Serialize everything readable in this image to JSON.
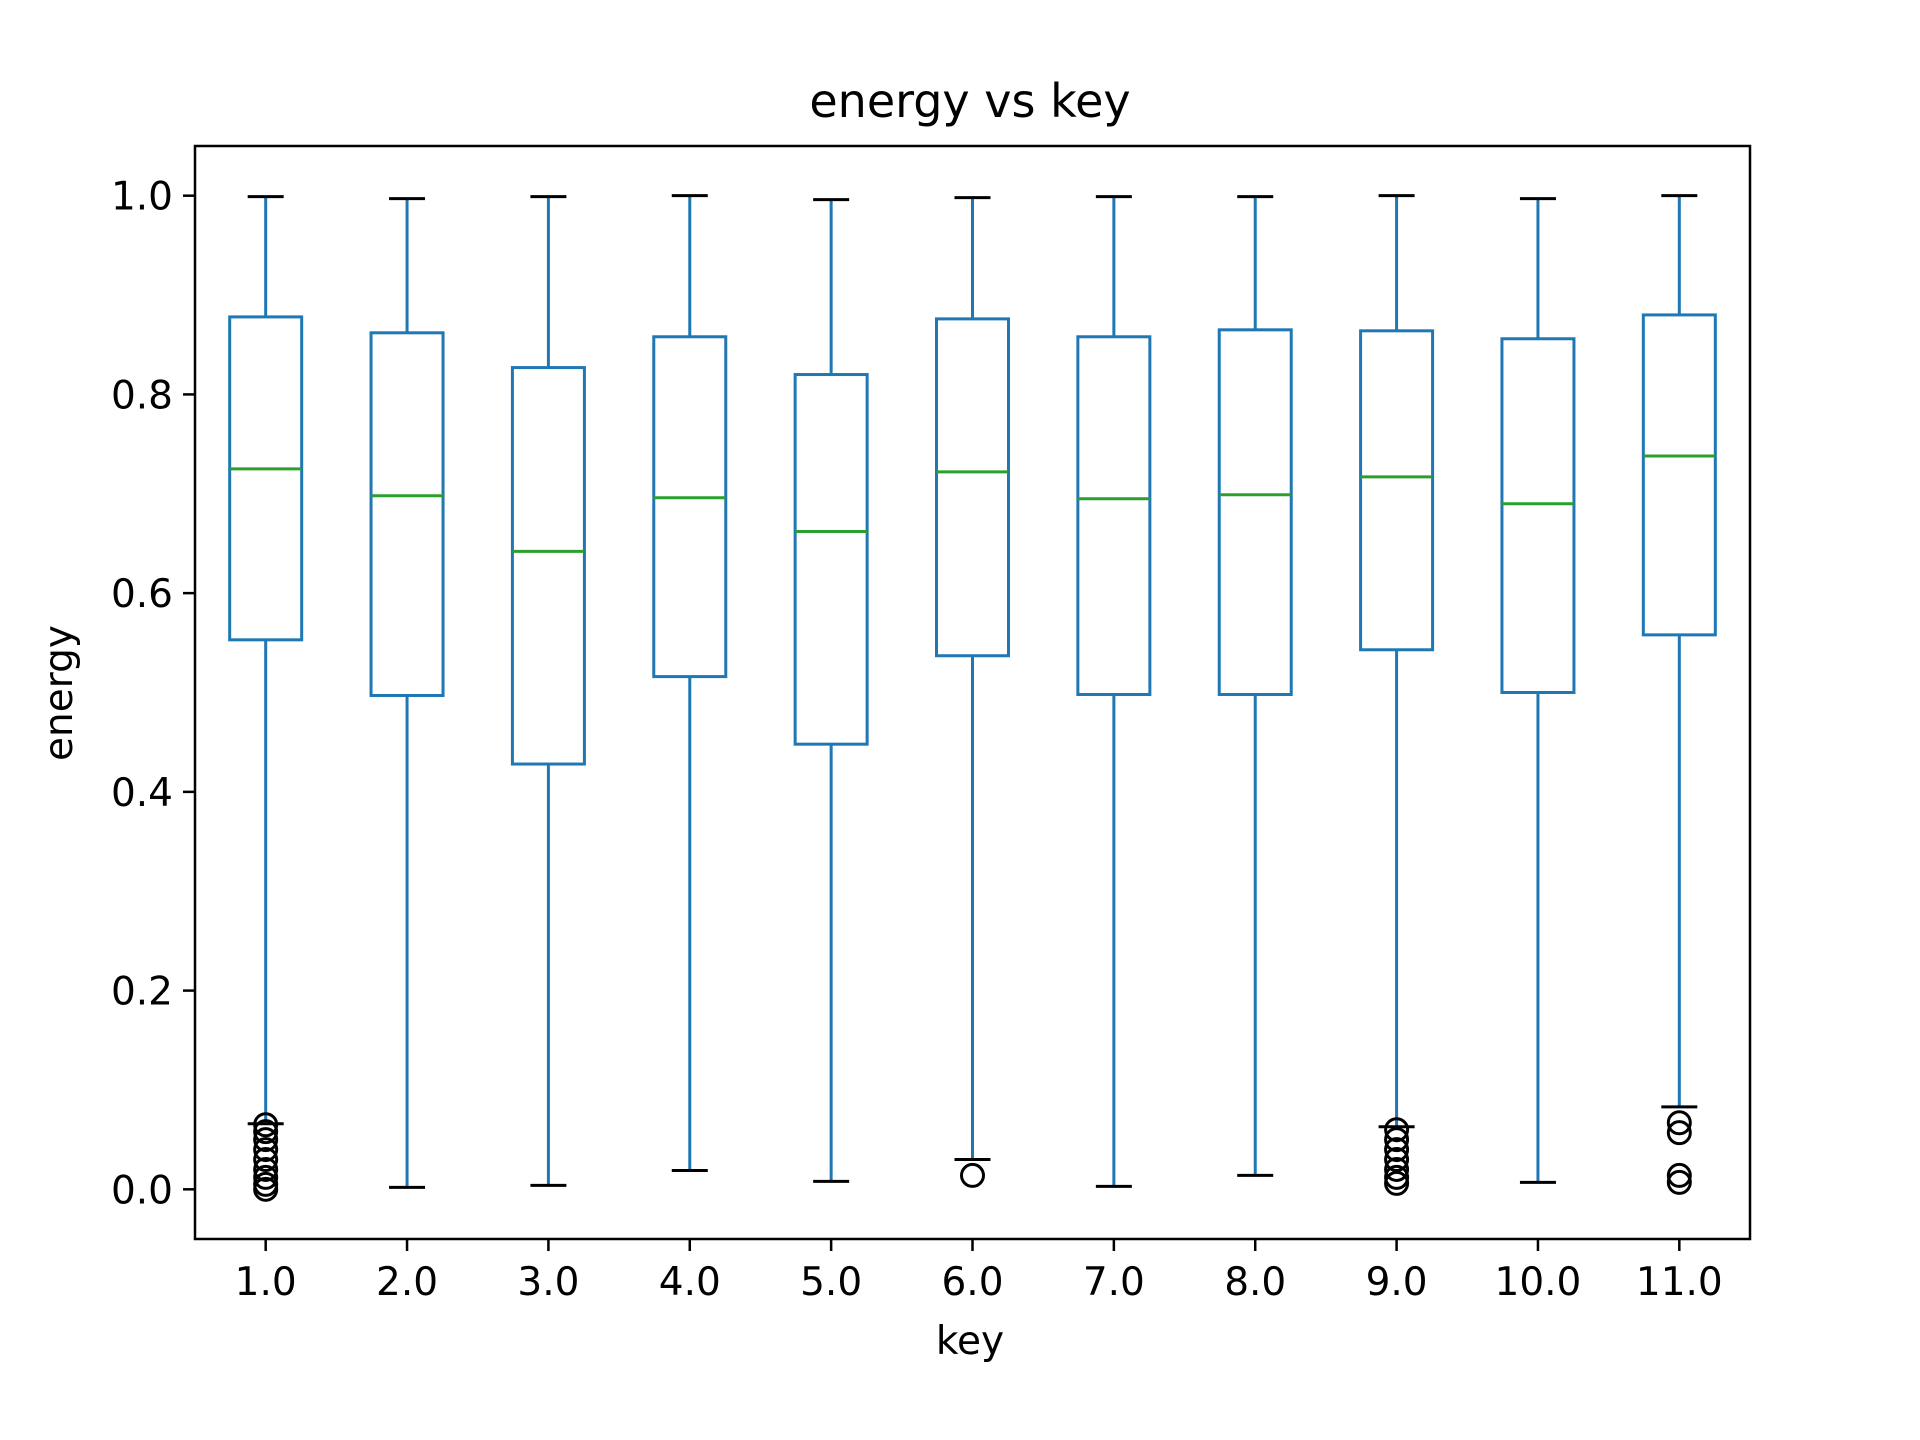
{
  "colors": {
    "box": "#1f77b4",
    "median": "#2ca02c",
    "whisker_cap": "#000000",
    "flier": "#000000",
    "axes": "#000000",
    "background": "#ffffff"
  },
  "chart_data": {
    "type": "box",
    "title": "energy vs key",
    "xlabel": "key",
    "ylabel": "energy",
    "ylim": [
      -0.05,
      1.05
    ],
    "grid": false,
    "legend": "none",
    "yticks": [
      "0.0",
      "0.2",
      "0.4",
      "0.6",
      "0.8",
      "1.0"
    ],
    "ytick_values": [
      0.0,
      0.2,
      0.4,
      0.6,
      0.8,
      1.0
    ],
    "categories": [
      "1.0",
      "2.0",
      "3.0",
      "4.0",
      "5.0",
      "6.0",
      "7.0",
      "8.0",
      "9.0",
      "10.0",
      "11.0"
    ],
    "boxes": [
      {
        "key": "1.0",
        "whisker_low": 0.066,
        "q1": 0.553,
        "median": 0.725,
        "q3": 0.878,
        "whisker_high": 0.999,
        "outliers": [
          0.0,
          0.005,
          0.012,
          0.02,
          0.03,
          0.04,
          0.05,
          0.058,
          0.065
        ]
      },
      {
        "key": "2.0",
        "whisker_low": 0.002,
        "q1": 0.497,
        "median": 0.698,
        "q3": 0.862,
        "whisker_high": 0.997,
        "outliers": []
      },
      {
        "key": "3.0",
        "whisker_low": 0.004,
        "q1": 0.428,
        "median": 0.642,
        "q3": 0.827,
        "whisker_high": 0.999,
        "outliers": []
      },
      {
        "key": "4.0",
        "whisker_low": 0.019,
        "q1": 0.516,
        "median": 0.696,
        "q3": 0.858,
        "whisker_high": 1.0,
        "outliers": []
      },
      {
        "key": "5.0",
        "whisker_low": 0.008,
        "q1": 0.448,
        "median": 0.662,
        "q3": 0.82,
        "whisker_high": 0.996,
        "outliers": []
      },
      {
        "key": "6.0",
        "whisker_low": 0.03,
        "q1": 0.537,
        "median": 0.722,
        "q3": 0.876,
        "whisker_high": 0.998,
        "outliers": [
          0.014
        ]
      },
      {
        "key": "7.0",
        "whisker_low": 0.003,
        "q1": 0.498,
        "median": 0.695,
        "q3": 0.858,
        "whisker_high": 0.999,
        "outliers": []
      },
      {
        "key": "8.0",
        "whisker_low": 0.014,
        "q1": 0.498,
        "median": 0.699,
        "q3": 0.865,
        "whisker_high": 0.999,
        "outliers": []
      },
      {
        "key": "9.0",
        "whisker_low": 0.063,
        "q1": 0.543,
        "median": 0.717,
        "q3": 0.864,
        "whisker_high": 1.0,
        "outliers": [
          0.006,
          0.012,
          0.02,
          0.03,
          0.04,
          0.05,
          0.06
        ]
      },
      {
        "key": "10.0",
        "whisker_low": 0.007,
        "q1": 0.5,
        "median": 0.69,
        "q3": 0.856,
        "whisker_high": 0.997,
        "outliers": []
      },
      {
        "key": "11.0",
        "whisker_low": 0.083,
        "q1": 0.558,
        "median": 0.738,
        "q3": 0.88,
        "whisker_high": 1.0,
        "outliers": [
          0.007,
          0.014,
          0.057,
          0.067
        ]
      }
    ]
  }
}
